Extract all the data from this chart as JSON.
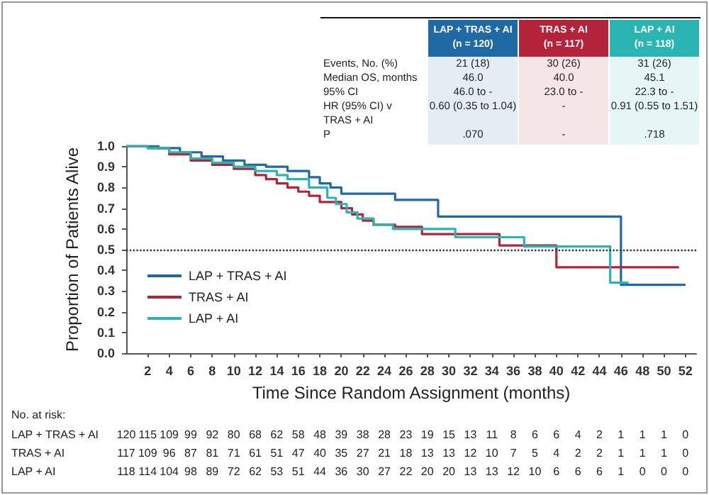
{
  "chart_data": {
    "type": "step",
    "xlabel": "Time Since Random Assignment (months)",
    "ylabel": "Proportion of Patients Alive",
    "xlim": [
      0,
      53
    ],
    "xticks": [
      2,
      4,
      6,
      8,
      10,
      12,
      14,
      16,
      18,
      20,
      22,
      24,
      26,
      28,
      30,
      32,
      34,
      36,
      38,
      40,
      42,
      44,
      46,
      48,
      50,
      52
    ],
    "ylim": [
      0,
      1
    ],
    "yticks": [
      {
        "value": 0,
        "label": "0.0"
      },
      0.1,
      0.2,
      0.3,
      0.4,
      0.5,
      0.6,
      0.7,
      0.8,
      0.9,
      {
        "value": 1,
        "label": "1.0"
      }
    ],
    "grid": false,
    "legend": "bottom left",
    "line_style": "solid",
    "ref_lines": [
      {
        "axis": "y",
        "value": 0.5,
        "line_style": "dotted",
        "color": "#333333"
      }
    ],
    "series": [
      {
        "name": "LAP + TRAS + AI",
        "color": "#1f6aa5",
        "x": [
          0,
          3,
          5,
          7,
          9,
          11,
          13,
          15,
          17,
          18,
          19,
          20,
          25,
          29,
          46,
          52
        ],
        "values": [
          1,
          0.99,
          0.97,
          0.95,
          0.93,
          0.91,
          0.9,
          0.88,
          0.85,
          0.82,
          0.8,
          0.77,
          0.74,
          0.66,
          0.33,
          0.33
        ]
      },
      {
        "name": "TRAS + AI",
        "color": "#b3243b",
        "x": [
          0,
          2,
          4,
          6,
          8,
          10,
          12,
          13,
          14,
          15,
          16,
          17,
          18,
          20,
          21,
          22,
          23,
          25,
          27.5,
          34.7,
          40,
          51.4
        ],
        "values": [
          1,
          0.99,
          0.96,
          0.93,
          0.91,
          0.89,
          0.86,
          0.84,
          0.82,
          0.8,
          0.78,
          0.76,
          0.73,
          0.7,
          0.67,
          0.64,
          0.62,
          0.61,
          0.575,
          0.52,
          0.415,
          0.415
        ]
      },
      {
        "name": "LAP + AI",
        "color": "#2bb5b2",
        "x": [
          0,
          2,
          4,
          6,
          8,
          10,
          12,
          14,
          15,
          17,
          18.7,
          19.5,
          20.5,
          21.5,
          23,
          24.8,
          30.6,
          37,
          45,
          46.7
        ],
        "values": [
          1,
          0.99,
          0.97,
          0.94,
          0.92,
          0.9,
          0.88,
          0.86,
          0.84,
          0.8,
          0.75,
          0.72,
          0.68,
          0.65,
          0.62,
          0.6,
          0.56,
          0.515,
          0.34,
          0.34
        ]
      }
    ],
    "annotations": [
      "LAP + TRAS + AI\n(n = 120)",
      "TRAS + AI\n(n = 117)",
      "LAP + AI\n(n = 118)",
      "Events, No. (%)\nMedian OS, months\n95% CI\nHR (95% CI) v\nTRAS + AI\nP",
      "21 (18)\n46.0\n46.0 to -\n0.60 (0.35 to 1.04)\n\n.070",
      "30 (26)\n40.0\n23.0 to -\n-\n\n-",
      "31 (26)\n45.1\n22.3 to -\n0.91 (0.55 to 1.51)\n\n.718",
      "No. at risk:",
      "120 115 109 99 92 80 68 62 58 48 39 38 28 23 19 15 13 11 8 6 6 4 2 1 1 1 0",
      "117 109 96 87 81 71 61 51 47 40 35 27 21 18 13 13 12 10 7 5 4 2 2 1 1 1 0",
      "118 114 104 98 89 72 62 53 51 44 36 30 27 22 20 20 13 13 12 10 6 6 6 1 0 0 0"
    ]
  }
}
